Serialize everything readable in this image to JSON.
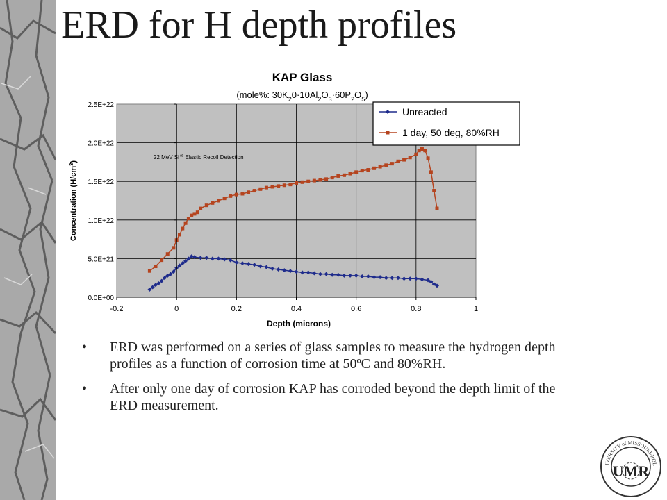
{
  "slide": {
    "title": "ERD for H depth profiles",
    "bullets": [
      {
        "marker": "•",
        "text": "ERD was performed on a series of glass samples to measure the hydrogen depth profiles as a function of corrosion time at 50ºC and 80%RH."
      },
      {
        "marker": "•",
        "text": "After only one day of corrosion KAP has corroded beyond the depth limit of the ERD measurement."
      }
    ],
    "logo": {
      "ring_text": "UNIVERSITY of MISSOURI-ROLLA",
      "monogram": "UMR"
    }
  },
  "colors": {
    "plot_background": "#c0c0c0",
    "unreacted": "#1f2c8c",
    "day1": "#b5441f",
    "sidebar": "#a9a9a9"
  },
  "chart_data": {
    "type": "line",
    "title": "KAP Glass",
    "subtitle_parts": [
      {
        "t": "(mole%: 30K"
      },
      {
        "t": "2",
        "sub": true
      },
      {
        "t": "0·10Al"
      },
      {
        "t": "2",
        "sub": true
      },
      {
        "t": "O"
      },
      {
        "t": "3",
        "sub": true
      },
      {
        "t": "·60P"
      },
      {
        "t": "2",
        "sub": true
      },
      {
        "t": "O"
      },
      {
        "t": "5",
        "sub": true
      },
      {
        "t": ")"
      }
    ],
    "xlabel": "Depth (microns)",
    "ylabel_parts": [
      {
        "t": "Concentration (H/cm"
      },
      {
        "t": "3",
        "sup": true
      },
      {
        "t": ")"
      }
    ],
    "annotation_parts": [
      {
        "t": "22 MeV Si"
      },
      {
        "t": "+6",
        "sup": true
      },
      {
        "t": " Elastic Recoil Detection"
      }
    ],
    "xlim": [
      -0.2,
      1
    ],
    "ylim": [
      0,
      2.5e+22
    ],
    "xticks": [
      -0.2,
      0,
      0.2,
      0.4,
      0.6,
      0.8,
      1
    ],
    "xtick_labels": [
      "-0.2",
      "0",
      "0.2",
      "0.4",
      "0.6",
      "0.8",
      "1"
    ],
    "yticks": [
      0,
      5e+21,
      1e+22,
      1.5e+22,
      2e+22,
      2.5e+22
    ],
    "ytick_labels": [
      "0.0E+00",
      "5.0E+21",
      "1.0E+22",
      "1.5E+22",
      "2.0E+22",
      "2.5E+22"
    ],
    "grid": "horizontal",
    "legend_position": "top-right",
    "series": [
      {
        "name": "Unreacted",
        "marker": "diamond",
        "x": [
          -0.09,
          -0.08,
          -0.07,
          -0.06,
          -0.05,
          -0.04,
          -0.03,
          -0.02,
          -0.01,
          0,
          0.01,
          0.02,
          0.03,
          0.04,
          0.05,
          0.06,
          0.08,
          0.1,
          0.12,
          0.14,
          0.16,
          0.18,
          0.2,
          0.22,
          0.24,
          0.26,
          0.28,
          0.3,
          0.32,
          0.34,
          0.36,
          0.38,
          0.4,
          0.42,
          0.44,
          0.46,
          0.48,
          0.5,
          0.52,
          0.54,
          0.56,
          0.58,
          0.6,
          0.62,
          0.64,
          0.66,
          0.68,
          0.7,
          0.72,
          0.74,
          0.76,
          0.78,
          0.8,
          0.82,
          0.84,
          0.85,
          0.86,
          0.87
        ],
        "y": [
          1e+21,
          1.3e+21,
          1.6e+21,
          1.8e+21,
          2.1e+21,
          2.5e+21,
          2.8e+21,
          3e+21,
          3.3e+21,
          3.8e+21,
          4.1e+21,
          4.4e+21,
          4.7e+21,
          5e+21,
          5.3e+21,
          5.2e+21,
          5.1e+21,
          5.1e+21,
          5e+21,
          5e+21,
          4.9e+21,
          4.8e+21,
          4.5e+21,
          4.4e+21,
          4.3e+21,
          4.2e+21,
          4e+21,
          3.9e+21,
          3.7e+21,
          3.6e+21,
          3.5e+21,
          3.4e+21,
          3.3e+21,
          3.2e+21,
          3.2e+21,
          3.1e+21,
          3e+21,
          3e+21,
          2.9e+21,
          2.9e+21,
          2.8e+21,
          2.8e+21,
          2.8e+21,
          2.7e+21,
          2.7e+21,
          2.6e+21,
          2.6e+21,
          2.5e+21,
          2.5e+21,
          2.5e+21,
          2.4e+21,
          2.4e+21,
          2.4e+21,
          2.3e+21,
          2.2e+21,
          2e+21,
          1.7e+21,
          1.5e+21
        ]
      },
      {
        "name": "1 day, 50 deg, 80%RH",
        "marker": "square",
        "x": [
          -0.09,
          -0.07,
          -0.05,
          -0.03,
          -0.01,
          0,
          0.01,
          0.02,
          0.03,
          0.04,
          0.05,
          0.06,
          0.07,
          0.08,
          0.1,
          0.12,
          0.14,
          0.16,
          0.18,
          0.2,
          0.22,
          0.24,
          0.26,
          0.28,
          0.3,
          0.32,
          0.34,
          0.36,
          0.38,
          0.4,
          0.42,
          0.44,
          0.46,
          0.48,
          0.5,
          0.52,
          0.54,
          0.56,
          0.58,
          0.6,
          0.62,
          0.64,
          0.66,
          0.68,
          0.7,
          0.72,
          0.74,
          0.76,
          0.78,
          0.8,
          0.81,
          0.82,
          0.83,
          0.84,
          0.85,
          0.86,
          0.87
        ],
        "y": [
          3.4e+21,
          4e+21,
          4.8e+21,
          5.6e+21,
          6.4e+21,
          7.4e+21,
          8.1e+21,
          8.9e+21,
          9.6e+21,
          1.02e+22,
          1.06e+22,
          1.08e+22,
          1.1e+22,
          1.15e+22,
          1.19e+22,
          1.22e+22,
          1.25e+22,
          1.28e+22,
          1.31e+22,
          1.33e+22,
          1.34e+22,
          1.36e+22,
          1.38e+22,
          1.4e+22,
          1.42e+22,
          1.43e+22,
          1.44e+22,
          1.45e+22,
          1.46e+22,
          1.48e+22,
          1.49e+22,
          1.5e+22,
          1.51e+22,
          1.52e+22,
          1.53e+22,
          1.55e+22,
          1.57e+22,
          1.58e+22,
          1.6e+22,
          1.62e+22,
          1.64e+22,
          1.65e+22,
          1.67e+22,
          1.69e+22,
          1.71e+22,
          1.73e+22,
          1.76e+22,
          1.78e+22,
          1.81e+22,
          1.85e+22,
          1.9e+22,
          1.92e+22,
          1.9e+22,
          1.8e+22,
          1.62e+22,
          1.38e+22,
          1.15e+22
        ]
      }
    ]
  }
}
